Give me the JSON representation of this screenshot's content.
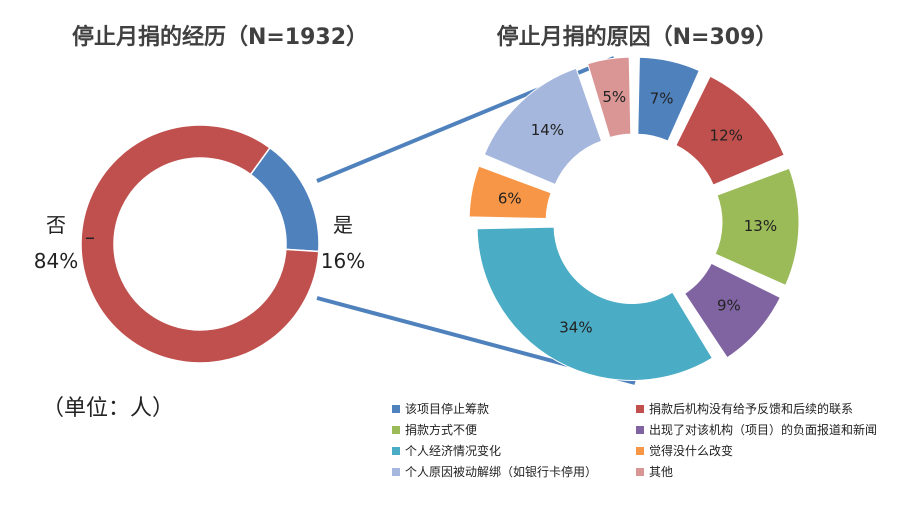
{
  "chart_data": [
    {
      "type": "pie",
      "variant": "donut",
      "title": "停止月捐的经历（N=1932）",
      "slices": [
        {
          "name": "是",
          "value": 16,
          "label": "16%",
          "color": "#4f81bd"
        },
        {
          "name": "否",
          "value": 84,
          "label": "84%",
          "color": "#c0504d"
        }
      ],
      "unit_note": "（单位：人）"
    },
    {
      "type": "pie",
      "variant": "exploded-donut",
      "title": "停止月捐的原因（N=309）",
      "slices": [
        {
          "name": "该项目停止筹款",
          "value": 7,
          "label": "7%",
          "color": "#4f81bd"
        },
        {
          "name": "捐款后机构没有给予反馈和后续的联系",
          "value": 12,
          "label": "12%",
          "color": "#c0504d"
        },
        {
          "name": "捐款方式不便",
          "value": 13,
          "label": "13%",
          "color": "#9bbb59"
        },
        {
          "name": "出现了对该机构（项目）的负面报道和新闻",
          "value": 9,
          "label": "9%",
          "color": "#8064a2"
        },
        {
          "name": "个人经济情况变化",
          "value": 34,
          "label": "34%",
          "color": "#4bacc6"
        },
        {
          "name": "觉得没什么改变",
          "value": 6,
          "label": "6%",
          "color": "#f79646"
        },
        {
          "name": "个人原因被动解绑（如银行卡停用）",
          "value": 14,
          "label": "14%",
          "color": "#a5b7dd"
        },
        {
          "name": "其他",
          "value": 5,
          "label": "5%",
          "color": "#d99694"
        }
      ],
      "legend_position": "bottom"
    }
  ],
  "connector_color": "#4f81bd",
  "dash_mark": "–"
}
